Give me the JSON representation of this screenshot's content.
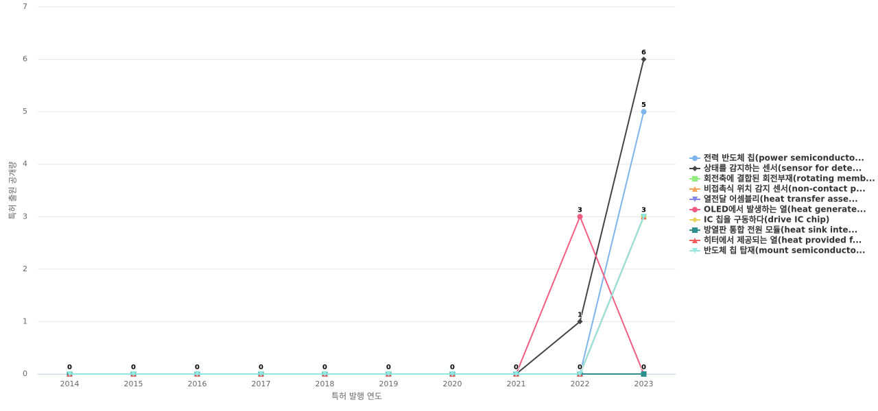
{
  "chart_data": {
    "type": "line",
    "x_label": "특허 발행 연도",
    "y_label": "특허 출원 공개량",
    "categories": [
      "2014",
      "2015",
      "2016",
      "2017",
      "2018",
      "2019",
      "2020",
      "2021",
      "2022",
      "2023"
    ],
    "ylim": [
      0,
      7
    ],
    "yticks": [
      0,
      1,
      2,
      3,
      4,
      5,
      6,
      7
    ],
    "grid": true,
    "legend": "right",
    "series": [
      {
        "name": "전력 반도체 칩(power semiconducto...",
        "color": "#7cb5ec",
        "marker": "circle",
        "values": [
          0,
          0,
          0,
          0,
          0,
          0,
          0,
          0,
          0,
          5
        ]
      },
      {
        "name": "상태를 감지하는 센서(sensor for dete...",
        "color": "#434348",
        "marker": "diamond",
        "values": [
          0,
          0,
          0,
          0,
          0,
          0,
          0,
          0,
          1,
          6
        ]
      },
      {
        "name": "회전축에 결합된 회전부재(rotating memb...",
        "color": "#90ed7d",
        "marker": "square",
        "values": [
          0,
          0,
          0,
          0,
          0,
          0,
          0,
          0,
          0,
          3
        ]
      },
      {
        "name": "비접촉식 위치 감지 센서(non-contact p...",
        "color": "#f7a35c",
        "marker": "triangle",
        "values": [
          0,
          0,
          0,
          0,
          0,
          0,
          0,
          0,
          0,
          3
        ]
      },
      {
        "name": "열전달 어셈블리(heat transfer asse...",
        "color": "#8085e9",
        "marker": "triangle-down",
        "values": [
          0,
          0,
          0,
          0,
          0,
          0,
          0,
          0,
          0,
          3
        ]
      },
      {
        "name": "OLED에서 발생하는 열(heat generate...",
        "color": "#f15c80",
        "marker": "circle",
        "values": [
          0,
          0,
          0,
          0,
          0,
          0,
          0,
          0,
          3,
          0
        ]
      },
      {
        "name": "IC 칩을 구동하다(drive IC chip)",
        "color": "#e4d354",
        "marker": "diamond",
        "values": [
          0,
          0,
          0,
          0,
          0,
          0,
          0,
          0,
          0,
          3
        ]
      },
      {
        "name": "방열판 통합 전원 모듈(heat sink inte...",
        "color": "#2b908f",
        "marker": "square",
        "values": [
          0,
          0,
          0,
          0,
          0,
          0,
          0,
          0,
          0,
          0
        ]
      },
      {
        "name": "히터에서 제공되는 열(heat provided f...",
        "color": "#f45b5b",
        "marker": "triangle",
        "values": [
          0,
          0,
          0,
          0,
          0,
          0,
          0,
          0,
          0,
          3
        ]
      },
      {
        "name": "반도체 칩 탑재(mount semiconducto...",
        "color": "#91e8e1",
        "marker": "triangle-down",
        "values": [
          0,
          0,
          0,
          0,
          0,
          0,
          0,
          0,
          0,
          3
        ]
      }
    ]
  }
}
